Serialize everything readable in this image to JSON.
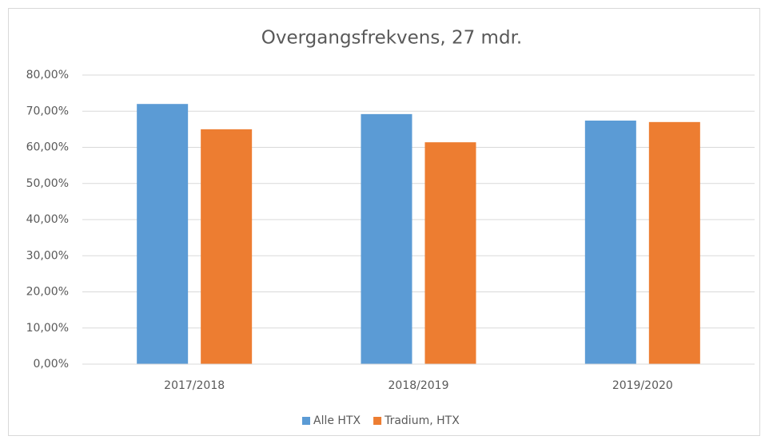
{
  "chart_data": {
    "type": "bar",
    "title": "Overgangsfrekvens, 27 mdr.",
    "categories": [
      "2017/2018",
      "2018/2019",
      "2019/2020"
    ],
    "series": [
      {
        "name": "Alle HTX",
        "color": "#5b9bd5",
        "values": [
          72.0,
          69.2,
          67.4
        ]
      },
      {
        "name": "Tradium, HTX",
        "color": "#ed7d31",
        "values": [
          65.0,
          61.4,
          67.0
        ]
      }
    ],
    "ylim": [
      0,
      80
    ],
    "yticks": [
      {
        "value": 0,
        "label": "0,00%"
      },
      {
        "value": 10,
        "label": "10,00%"
      },
      {
        "value": 20,
        "label": "20,00%"
      },
      {
        "value": 30,
        "label": "30,00%"
      },
      {
        "value": 40,
        "label": "40,00%"
      },
      {
        "value": 50,
        "label": "50,00%"
      },
      {
        "value": 60,
        "label": "60,00%"
      },
      {
        "value": 70,
        "label": "70,00%"
      },
      {
        "value": 80,
        "label": "80,00%"
      }
    ],
    "grid": true,
    "legend": "bottom"
  }
}
